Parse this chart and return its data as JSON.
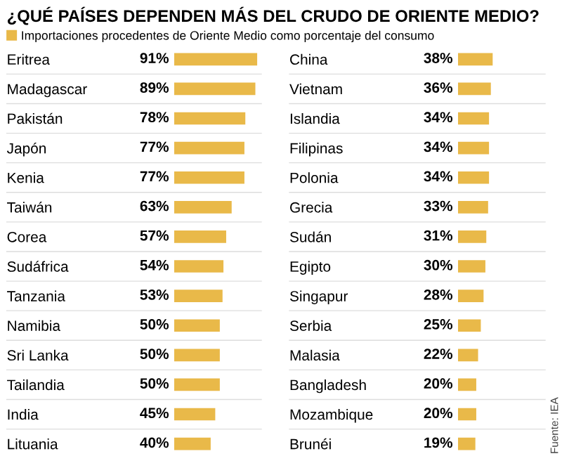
{
  "chart_data": [
    {
      "type": "bar",
      "orientation": "horizontal",
      "title": "¿QUÉ PAÍSES DEPENDEN MÁS DEL CRUDO DE ORIENTE MEDIO?",
      "legend": "top",
      "categories": [
        "Eritrea",
        "Madagascar",
        "Pakistán",
        "Japón",
        "Kenia",
        "Taiwán",
        "Corea",
        "Sudáfrica",
        "Tanzania",
        "Namibia",
        "Sri Lanka",
        "Tailandia",
        "India",
        "Lituania"
      ],
      "series": [
        {
          "name": "Importaciones procedentes de Oriente Medio como porcentaje del consumo",
          "color": "#e9b949",
          "values": [
            91,
            89,
            78,
            77,
            77,
            63,
            57,
            54,
            53,
            50,
            50,
            50,
            45,
            40
          ],
          "value_labels": [
            "91%",
            "89%",
            "78%",
            "77%",
            "77%",
            "63%",
            "57%",
            "54%",
            "53%",
            "50%",
            "50%",
            "50%",
            "45%",
            "40%"
          ]
        }
      ]
    },
    {
      "type": "bar",
      "orientation": "horizontal",
      "annotations": [
        "Fuente: IEA"
      ],
      "categories": [
        "China",
        "Vietnam",
        "Islandia",
        "Filipinas",
        "Polonia",
        "Grecia",
        "Sudán",
        "Egipto",
        "Singapur",
        "Serbia",
        "Malasia",
        "Bangladesh",
        "Mozambique",
        "Brunéi"
      ],
      "series": [
        {
          "color": "#e9b949",
          "values": [
            38,
            36,
            34,
            34,
            34,
            33,
            31,
            30,
            28,
            25,
            22,
            20,
            20,
            19
          ],
          "value_labels": [
            "38%",
            "36%",
            "34%",
            "34%",
            "34%",
            "33%",
            "31%",
            "30%",
            "28%",
            "25%",
            "22%",
            "20%",
            "20%",
            "19%"
          ]
        }
      ]
    }
  ]
}
